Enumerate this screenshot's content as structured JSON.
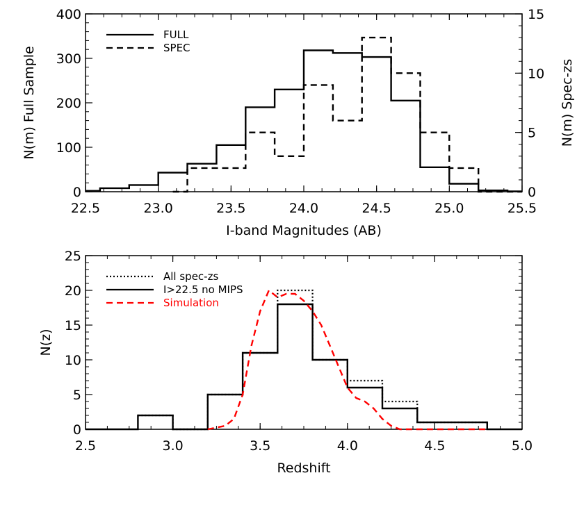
{
  "chart_data": [
    {
      "type": "histogram",
      "xlabel": "I-band Magnitudes (AB)",
      "ylabel": "N(m) Full Sample",
      "y2label": "N(m) Spec-zs",
      "xlim": [
        22.5,
        25.5
      ],
      "ylim": [
        0,
        400
      ],
      "y2lim": [
        0,
        15
      ],
      "xticks": [
        "22.5",
        "23.0",
        "23.5",
        "24.0",
        "24.5",
        "25.0",
        "25.5"
      ],
      "yticks": [
        "0",
        "100",
        "200",
        "300",
        "400"
      ],
      "y2ticks": [
        "0",
        "5",
        "10",
        "15"
      ],
      "legend_position": "top-left",
      "series": [
        {
          "name": "FULL",
          "axis": "left",
          "style": "solid",
          "bin_edges": [
            22.5,
            22.6,
            22.8,
            23.0,
            23.2,
            23.4,
            23.6,
            23.8,
            24.0,
            24.2,
            24.4,
            24.6,
            24.8,
            25.0,
            25.2,
            25.4,
            25.5
          ],
          "values": [
            2,
            8,
            15,
            43,
            63,
            105,
            190,
            230,
            318,
            312,
            303,
            205,
            55,
            18,
            3,
            1
          ]
        },
        {
          "name": "SPEC",
          "axis": "right",
          "style": "dashed",
          "bin_edges": [
            23.1,
            23.2,
            23.4,
            23.6,
            23.8,
            24.0,
            24.2,
            24.4,
            24.6,
            24.8,
            25.0,
            25.2,
            25.5
          ],
          "values": [
            0,
            2,
            2,
            5,
            3,
            9,
            6,
            13,
            10,
            5,
            2,
            0
          ]
        }
      ]
    },
    {
      "type": "histogram",
      "xlabel": "Redshift",
      "ylabel": "N(z)",
      "xlim": [
        2.5,
        5.0
      ],
      "ylim": [
        0,
        25
      ],
      "xticks": [
        "2.5",
        "3.0",
        "3.5",
        "4.0",
        "4.5",
        "5.0"
      ],
      "yticks": [
        "0",
        "5",
        "10",
        "15",
        "20",
        "25"
      ],
      "legend_position": "top-left",
      "series": [
        {
          "name": "All spec-zs",
          "style": "dotted",
          "color": "#000000",
          "bin_edges": [
            2.8,
            3.0,
            3.2,
            3.4,
            3.6,
            3.8,
            4.0,
            4.2,
            4.4,
            4.8
          ],
          "values": [
            2,
            0,
            5,
            11,
            20,
            10,
            7,
            4,
            1
          ]
        },
        {
          "name": "I>22.5 no MIPS",
          "style": "solid",
          "color": "#000000",
          "bin_edges": [
            2.5,
            2.8,
            3.0,
            3.2,
            3.4,
            3.6,
            3.8,
            4.0,
            4.2,
            4.4,
            4.8,
            5.0
          ],
          "values": [
            0,
            2,
            0,
            5,
            11,
            18,
            10,
            6,
            3,
            1,
            0
          ]
        },
        {
          "name": "Simulation",
          "style": "dashed",
          "color": "#ff0000",
          "type": "line",
          "x": [
            3.2,
            3.3,
            3.35,
            3.4,
            3.45,
            3.5,
            3.55,
            3.6,
            3.65,
            3.7,
            3.75,
            3.8,
            3.85,
            3.9,
            3.95,
            4.0,
            4.05,
            4.1,
            4.15,
            4.2,
            4.25,
            4.3,
            4.4,
            4.8
          ],
          "y": [
            0,
            0.5,
            1.5,
            5,
            12,
            17,
            20,
            19,
            19.5,
            19.5,
            18.5,
            17,
            15,
            12,
            9,
            6,
            4.5,
            4,
            3,
            1.5,
            0.5,
            0,
            0,
            0
          ]
        }
      ]
    }
  ]
}
